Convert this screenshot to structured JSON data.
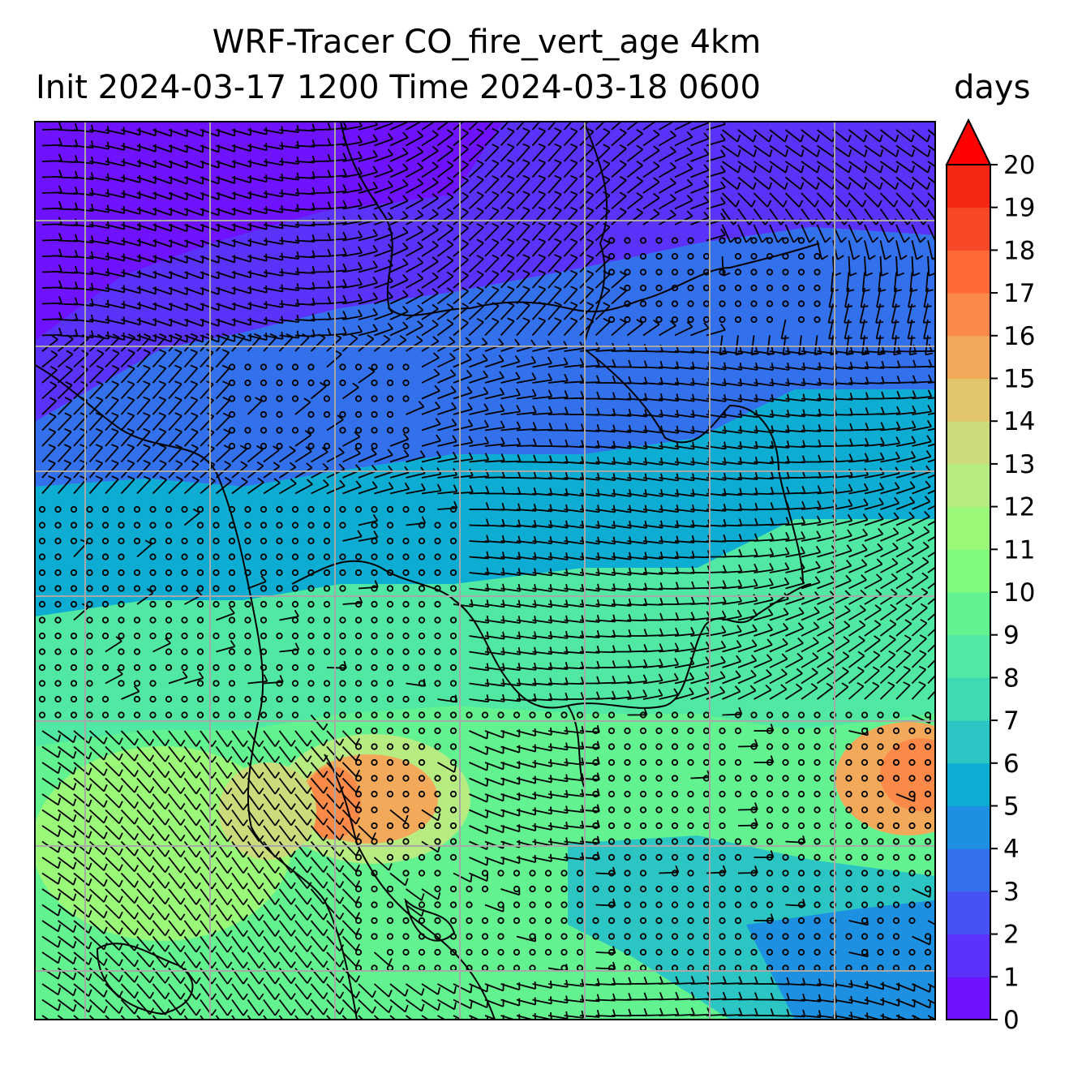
{
  "title": {
    "line1": "WRF-Tracer CO_fire_vert_age 4km",
    "line2": "Init 2024-03-17 1200 Time 2024-03-18 0600"
  },
  "colorbar": {
    "units": "days",
    "min": 0,
    "max": 20,
    "extend": "max",
    "tick_labels": [
      "0",
      "1",
      "2",
      "3",
      "4",
      "5",
      "6",
      "7",
      "8",
      "9",
      "10",
      "11",
      "12",
      "13",
      "14",
      "15",
      "16",
      "17",
      "18",
      "19",
      "20"
    ],
    "colors": [
      "#6f12fe",
      "#5a32fa",
      "#4652f4",
      "#3270ec",
      "#1e90e1",
      "#0cacd3",
      "#2bc5c4",
      "#3fd9b4",
      "#50e8a2",
      "#62f28f",
      "#7ffc7c",
      "#9bf97a",
      "#b6ec82",
      "#ccdc7c",
      "#e2c46c",
      "#f2a95a",
      "#fb8a48",
      "#fd6a38",
      "#f94828",
      "#f52613",
      "#fe0000"
    ],
    "extend_color": "#fe0000"
  },
  "map": {
    "gridlines": true,
    "gridline_color": "#a8a8a8",
    "wind_barbs": true,
    "coastline_color": "#000000"
  }
}
